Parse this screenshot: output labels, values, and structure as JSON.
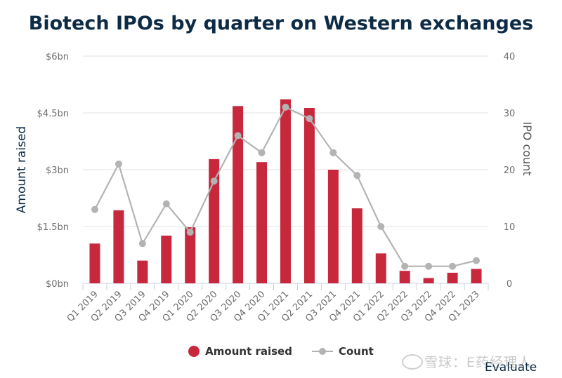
{
  "chart_data": {
    "type": "bar",
    "title": "Biotech IPOs by quarter on Western exchanges",
    "categories": [
      "Q1 2019",
      "Q2 2019",
      "Q3 2019",
      "Q4 2019",
      "Q1 2020",
      "Q2 2020",
      "Q3 2020",
      "Q4 2020",
      "Q1 2021",
      "Q2 2021",
      "Q3 2021",
      "Q4 2021",
      "Q1 2022",
      "Q2 2022",
      "Q3 2022",
      "Q4 2022",
      "Q1 2023"
    ],
    "series": [
      {
        "name": "Amount raised",
        "type": "bar",
        "axis": "left",
        "color": "#c8283c",
        "values": [
          1.05,
          1.93,
          0.6,
          1.26,
          1.48,
          3.28,
          4.68,
          3.2,
          4.86,
          4.63,
          3.0,
          1.98,
          0.79,
          0.33,
          0.14,
          0.28,
          0.38
        ]
      },
      {
        "name": "Count",
        "type": "line",
        "axis": "right",
        "color": "#b3b3b3",
        "values": [
          13,
          21,
          7,
          14,
          9,
          18,
          26,
          23,
          31,
          29,
          23,
          19,
          10,
          3,
          3,
          3,
          4
        ]
      }
    ],
    "ylabel": "Amount raised",
    "ylabel_right": "IPO count",
    "ylim": [
      0,
      6
    ],
    "ylim_right": [
      0,
      40
    ],
    "yticks": [
      0,
      1.5,
      3,
      4.5,
      6
    ],
    "ytick_labels": [
      "$0bn",
      "$1.5bn",
      "$3bn",
      "$4.5bn",
      "$6bn"
    ],
    "yticks_right": [
      0,
      10,
      20,
      30,
      40
    ],
    "ytick_labels_right": [
      "0",
      "10",
      "20",
      "30",
      "40"
    ],
    "grid": true,
    "legend_position": "bottom-center"
  },
  "legend": {
    "bar_label": "Amount raised",
    "line_label": "Count"
  },
  "watermark": "雪球：E药经理人",
  "source": "Evaluate"
}
